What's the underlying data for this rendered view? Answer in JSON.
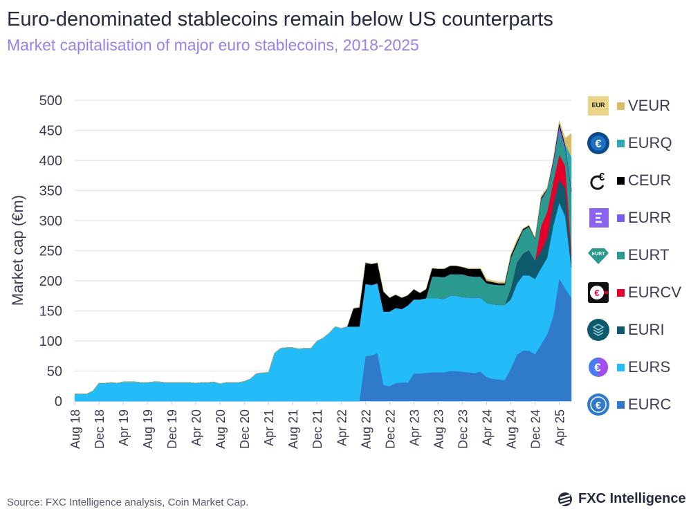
{
  "header": {
    "title": "Euro-denominated stablecoins remain below US counterparts",
    "subtitle": "Market capitalisation of major euro stablecoins, 2018-2025"
  },
  "footer": {
    "source": "Source: FXC Intelligence analysis, Coin Market Cap.",
    "logo_text": "FXC Intelligence"
  },
  "chart_data": {
    "type": "area",
    "stacked": true,
    "title": "Euro-denominated stablecoins remain below US counterparts",
    "subtitle": "Market capitalisation of major euro stablecoins, 2018-2025",
    "xlabel": "",
    "ylabel": "Market cap (€m)",
    "ylim": [
      0,
      500
    ],
    "yticks": [
      0,
      50,
      100,
      150,
      200,
      250,
      300,
      350,
      400,
      450,
      500
    ],
    "grid": true,
    "legend_position": "right",
    "xtick_labels": [
      "Aug 18",
      "Dec 18",
      "Apr 19",
      "Aug 19",
      "Dec 19",
      "Apr 20",
      "Aug 20",
      "Dec 20",
      "Apr 21",
      "Aug 21",
      "Dec 21",
      "Apr 22",
      "Aug 22",
      "Dec 22",
      "Apr 23",
      "Aug 23",
      "Dec 23",
      "Apr 24",
      "Aug 24",
      "Dec 24",
      "Apr 25"
    ],
    "x": [
      "2018-08",
      "2018-09",
      "2018-10",
      "2018-11",
      "2018-12",
      "2019-01",
      "2019-02",
      "2019-03",
      "2019-04",
      "2019-05",
      "2019-06",
      "2019-07",
      "2019-08",
      "2019-09",
      "2019-10",
      "2019-11",
      "2019-12",
      "2020-01",
      "2020-02",
      "2020-03",
      "2020-04",
      "2020-05",
      "2020-06",
      "2020-07",
      "2020-08",
      "2020-09",
      "2020-10",
      "2020-11",
      "2020-12",
      "2021-01",
      "2021-02",
      "2021-03",
      "2021-04",
      "2021-05",
      "2021-06",
      "2021-07",
      "2021-08",
      "2021-09",
      "2021-10",
      "2021-11",
      "2021-12",
      "2022-01",
      "2022-02",
      "2022-03",
      "2022-04",
      "2022-05",
      "2022-06",
      "2022-07",
      "2022-08",
      "2022-09",
      "2022-10",
      "2022-11",
      "2022-12",
      "2023-01",
      "2023-02",
      "2023-03",
      "2023-04",
      "2023-05",
      "2023-06",
      "2023-07",
      "2023-08",
      "2023-09",
      "2023-10",
      "2023-11",
      "2023-12",
      "2024-01",
      "2024-02",
      "2024-03",
      "2024-04",
      "2024-05",
      "2024-06",
      "2024-07",
      "2024-08",
      "2024-09",
      "2024-10",
      "2024-11",
      "2024-12",
      "2025-01",
      "2025-02",
      "2025-03",
      "2025-04",
      "2025-05",
      "2025-06"
    ],
    "series": [
      {
        "name": "EURC",
        "color": "#2f7acb",
        "icon": "eurc-coin-icon",
        "values": [
          0,
          0,
          0,
          0,
          0,
          0,
          0,
          0,
          0,
          0,
          0,
          0,
          0,
          0,
          0,
          0,
          0,
          0,
          0,
          0,
          0,
          0,
          0,
          0,
          0,
          0,
          0,
          0,
          0,
          0,
          0,
          0,
          0,
          0,
          0,
          0,
          0,
          0,
          0,
          0,
          0,
          0,
          0,
          0,
          0,
          0,
          0,
          0,
          75,
          76,
          80,
          27,
          25,
          30,
          31,
          31,
          46,
          46,
          47,
          48,
          48,
          48,
          50,
          50,
          49,
          48,
          47,
          49,
          40,
          37,
          36,
          35,
          54,
          77,
          84,
          84,
          78,
          94,
          111,
          141,
          204,
          187,
          172
        ]
      },
      {
        "name": "EURS",
        "color": "#24bcf8",
        "icon": "eurs-coin-icon",
        "values": [
          12,
          12,
          12,
          17,
          30,
          30,
          31,
          30,
          32,
          32,
          32,
          31,
          31,
          32,
          32,
          31,
          31,
          31,
          31,
          31,
          30,
          31,
          31,
          32,
          29,
          31,
          31,
          31,
          33,
          37,
          46,
          47,
          48,
          80,
          88,
          89,
          89,
          87,
          88,
          88,
          100,
          105,
          113,
          124,
          121,
          124,
          124,
          124,
          120,
          117,
          116,
          122,
          124,
          125,
          122,
          128,
          123,
          123,
          124,
          123,
          123,
          122,
          125,
          125,
          124,
          124,
          125,
          123,
          123,
          124,
          124,
          125,
          115,
          118,
          125,
          125,
          125,
          127,
          127,
          150,
          126,
          120,
          50
        ]
      },
      {
        "name": "EURI",
        "color": "#0e5a6d",
        "icon": "euri-coin-icon",
        "values": [
          0,
          0,
          0,
          0,
          0,
          0,
          0,
          0,
          0,
          0,
          0,
          0,
          0,
          0,
          0,
          0,
          0,
          0,
          0,
          0,
          0,
          0,
          0,
          0,
          0,
          0,
          0,
          0,
          0,
          0,
          0,
          0,
          0,
          0,
          0,
          0,
          0,
          0,
          0,
          0,
          0,
          0,
          0,
          0,
          0,
          0,
          0,
          0,
          0,
          0,
          0,
          0,
          0,
          0,
          0,
          0,
          0,
          0,
          0,
          0,
          0,
          0,
          0,
          0,
          0,
          0,
          0,
          0,
          0,
          0,
          0,
          0,
          18,
          35,
          36,
          42,
          31,
          28,
          34,
          35,
          38,
          46,
          20
        ]
      },
      {
        "name": "EURCV",
        "color": "#e4002b",
        "icon": "eurcv-coin-icon",
        "values": [
          0,
          0,
          0,
          0,
          0,
          0,
          0,
          0,
          0,
          0,
          0,
          0,
          0,
          0,
          0,
          0,
          0,
          0,
          0,
          0,
          0,
          0,
          0,
          0,
          0,
          0,
          0,
          0,
          0,
          0,
          0,
          0,
          0,
          0,
          0,
          0,
          0,
          0,
          0,
          0,
          0,
          0,
          0,
          0,
          0,
          0,
          0,
          0,
          0,
          0,
          0,
          0,
          0,
          0,
          0,
          0,
          0,
          0,
          0,
          0,
          0,
          0,
          0,
          0,
          0,
          0,
          0,
          0,
          0,
          0,
          0,
          0,
          0,
          0,
          0,
          0,
          0,
          42,
          42,
          38,
          42,
          38,
          10
        ]
      },
      {
        "name": "EURT",
        "color": "#2a9a8e",
        "icon": "eurt-coin-icon",
        "values": [
          0,
          0,
          0,
          0,
          0,
          0,
          0,
          0,
          0,
          0,
          0,
          0,
          0,
          0,
          0,
          0,
          0,
          0,
          0,
          0,
          0,
          0,
          0,
          0,
          0,
          0,
          0,
          0,
          0,
          0,
          0,
          0,
          0,
          0,
          0,
          0,
          0,
          0,
          0,
          0,
          0,
          0,
          0,
          0,
          0,
          0,
          0,
          0,
          0,
          0,
          0,
          0,
          0,
          0,
          0,
          0,
          0,
          0,
          0,
          36,
          36,
          36,
          36,
          36,
          38,
          36,
          35,
          35,
          33,
          33,
          33,
          33,
          51,
          31,
          39,
          39,
          36,
          42,
          37,
          27,
          38,
          26,
          95
        ]
      },
      {
        "name": "EURR",
        "color": "#7b5cf0",
        "icon": "eurr-coin-icon",
        "values": [
          0,
          0,
          0,
          0,
          0,
          0,
          0,
          0,
          0,
          0,
          0,
          0,
          0,
          0,
          0,
          0,
          0,
          0,
          0,
          0,
          0,
          0,
          0,
          0,
          0,
          0,
          0,
          0,
          0,
          0,
          0,
          0,
          0,
          0,
          0,
          0,
          0,
          0,
          0,
          0,
          0,
          0,
          0,
          0,
          0,
          0,
          0,
          0,
          0,
          0,
          0,
          0,
          0,
          0,
          0,
          0,
          0,
          0,
          0,
          0,
          0,
          0,
          0,
          0,
          0,
          0,
          0,
          0,
          0,
          0,
          0,
          0,
          0,
          0,
          0,
          0,
          0,
          2,
          1,
          5,
          10,
          5,
          2
        ]
      },
      {
        "name": "CEUR",
        "color": "#000000",
        "icon": "ceur-coin-icon",
        "values": [
          0,
          0,
          0,
          0,
          0,
          0,
          0,
          0,
          0,
          0,
          0,
          0,
          0,
          0,
          0,
          0,
          0,
          0,
          0,
          0,
          0,
          0,
          0,
          0,
          0,
          0,
          0,
          0,
          0,
          0,
          0,
          0,
          0,
          0,
          0,
          0,
          0,
          0,
          0,
          0,
          0,
          0,
          0,
          0,
          0,
          0,
          30,
          32,
          35,
          35,
          34,
          33,
          23,
          22,
          19,
          17,
          17,
          11,
          15,
          14,
          13,
          14,
          14,
          14,
          12,
          12,
          13,
          13,
          4,
          4,
          3,
          3,
          4,
          4,
          2,
          2,
          1,
          3,
          1,
          4,
          5,
          3,
          2
        ]
      },
      {
        "name": "EURQ",
        "color": "#2ba8b2",
        "icon": "eurq-coin-icon",
        "values": [
          0,
          0,
          0,
          0,
          0,
          0,
          0,
          0,
          0,
          0,
          0,
          0,
          0,
          0,
          0,
          0,
          0,
          0,
          0,
          0,
          0,
          0,
          0,
          0,
          0,
          0,
          0,
          0,
          0,
          0,
          0,
          0,
          0,
          0,
          0,
          0,
          0,
          0,
          0,
          0,
          0,
          0,
          0,
          0,
          0,
          0,
          0,
          0,
          0,
          0,
          0,
          0,
          0,
          0,
          0,
          0,
          0,
          0,
          0,
          0,
          0,
          0,
          0,
          0,
          0,
          0,
          0,
          0,
          0,
          0,
          0,
          0,
          0,
          0,
          0,
          0,
          0,
          0,
          0,
          0,
          0,
          2,
          55
        ]
      },
      {
        "name": "VEUR",
        "color": "#d8bd68",
        "icon": "veur-coin-icon",
        "values": [
          0,
          0,
          0,
          0,
          0,
          0,
          0,
          0,
          0,
          0,
          0,
          0,
          0,
          0,
          0,
          0,
          0,
          0,
          0,
          0,
          0,
          0,
          0,
          0,
          0,
          0,
          0,
          0,
          0,
          0,
          0,
          0,
          0,
          0,
          0,
          0,
          0,
          0,
          0,
          0,
          0,
          0,
          0,
          0,
          0,
          0,
          0,
          0,
          0,
          0,
          0,
          0,
          0,
          0,
          0,
          0,
          0,
          0,
          0,
          0,
          0,
          0,
          0,
          0,
          0,
          1,
          1,
          1,
          3,
          2,
          2,
          2,
          2,
          3,
          1,
          1,
          1,
          3,
          1,
          2,
          3,
          10,
          39
        ]
      }
    ]
  }
}
